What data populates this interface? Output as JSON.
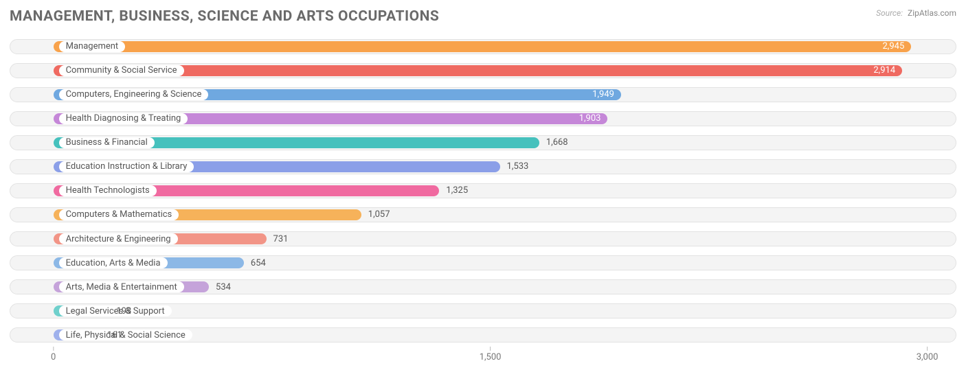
{
  "title": "MANAGEMENT, BUSINESS, SCIENCE AND ARTS OCCUPATIONS",
  "source": {
    "label": "Source:",
    "name": "ZipAtlas.com"
  },
  "chart": {
    "type": "bar-horizontal",
    "xmin": -150,
    "xmax": 3100,
    "ticks": [
      {
        "value": 0,
        "label": "0"
      },
      {
        "value": 1500,
        "label": "1,500"
      },
      {
        "value": 3000,
        "label": "3,000"
      }
    ],
    "track_bg": "#f4f4f4",
    "track_border": "#e2e2e2",
    "value_inside_color": "#ffffff",
    "value_outside_color": "#555555",
    "label_fontsize": 13,
    "value_fontsize": 13,
    "bars": [
      {
        "label": "Management",
        "value": 2945,
        "display": "2,945",
        "color": "#f8a24b",
        "value_inside": true
      },
      {
        "label": "Community & Social Service",
        "value": 2914,
        "display": "2,914",
        "color": "#ef6a61",
        "value_inside": true
      },
      {
        "label": "Computers, Engineering & Science",
        "value": 1949,
        "display": "1,949",
        "color": "#6fa8e0",
        "value_inside": true
      },
      {
        "label": "Health Diagnosing & Treating",
        "value": 1903,
        "display": "1,903",
        "color": "#c587d8",
        "value_inside": true
      },
      {
        "label": "Business & Financial",
        "value": 1668,
        "display": "1,668",
        "color": "#46c1bd",
        "value_inside": false
      },
      {
        "label": "Education Instruction & Library",
        "value": 1533,
        "display": "1,533",
        "color": "#8b9fe8",
        "value_inside": false
      },
      {
        "label": "Health Technologists",
        "value": 1325,
        "display": "1,325",
        "color": "#f06aa0",
        "value_inside": false
      },
      {
        "label": "Computers & Mathematics",
        "value": 1057,
        "display": "1,057",
        "color": "#f6b25a",
        "value_inside": false
      },
      {
        "label": "Architecture & Engineering",
        "value": 731,
        "display": "731",
        "color": "#f29587",
        "value_inside": false
      },
      {
        "label": "Education, Arts & Media",
        "value": 654,
        "display": "654",
        "color": "#8cb8e6",
        "value_inside": false
      },
      {
        "label": "Arts, Media & Entertainment",
        "value": 534,
        "display": "534",
        "color": "#c5a3da",
        "value_inside": false
      },
      {
        "label": "Legal Services & Support",
        "value": 193,
        "display": "193",
        "color": "#6fd0cc",
        "value_inside": false
      },
      {
        "label": "Life, Physical & Social Science",
        "value": 161,
        "display": "161",
        "color": "#9fb1ec",
        "value_inside": false
      }
    ]
  }
}
